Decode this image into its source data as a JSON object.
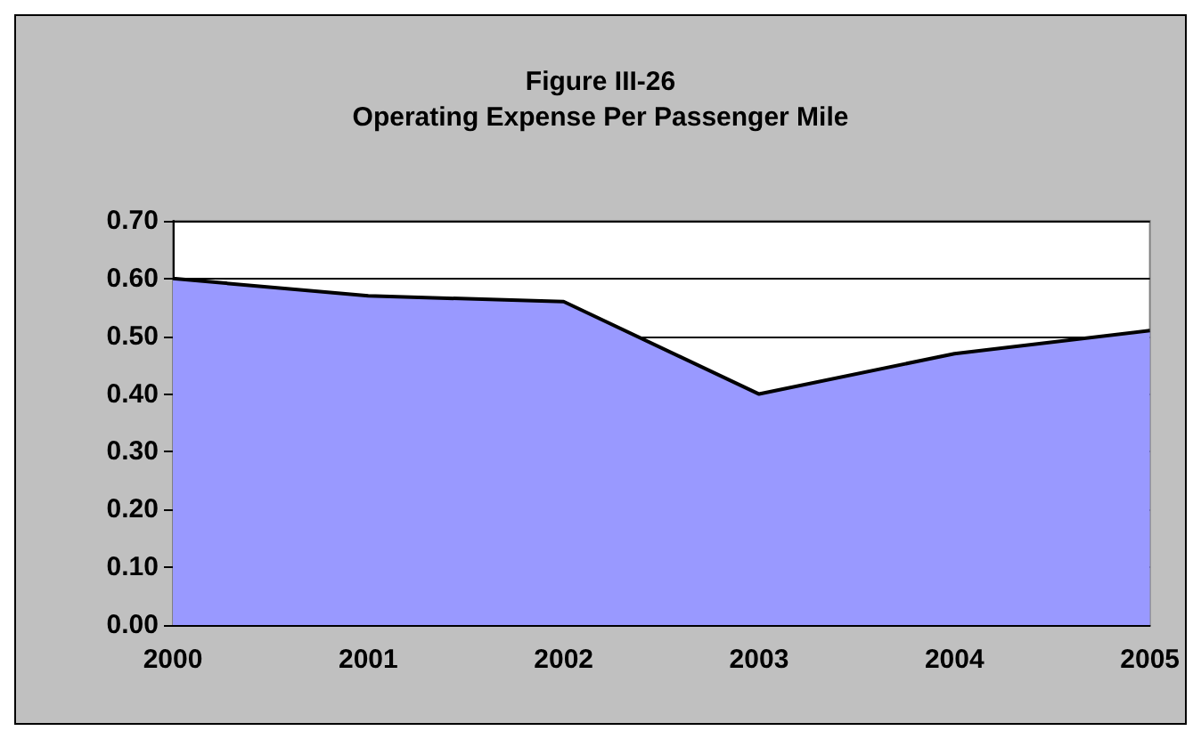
{
  "chart_data": {
    "type": "area",
    "title": "Figure III-26\nOperating Expense Per Passenger Mile",
    "categories": [
      "2000",
      "2001",
      "2002",
      "2003",
      "2004",
      "2005"
    ],
    "series": [
      {
        "color": "#9999ff",
        "values": [
          0.6,
          0.57,
          0.56,
          0.4,
          0.47,
          0.51
        ]
      }
    ],
    "ylim": [
      0,
      0.7
    ],
    "yticks": [
      {
        "value": 0,
        "label": "0.00"
      },
      {
        "value": 0.1,
        "label": "0.10"
      },
      {
        "value": 0.2,
        "label": "0.20"
      },
      {
        "value": 0.3,
        "label": "0.30"
      },
      {
        "value": 0.4,
        "label": "0.40"
      },
      {
        "value": 0.5,
        "label": "0.50"
      },
      {
        "value": 0.6,
        "label": "0.60"
      },
      {
        "value": 0.7,
        "label": "0.70"
      }
    ],
    "grid": "y"
  }
}
